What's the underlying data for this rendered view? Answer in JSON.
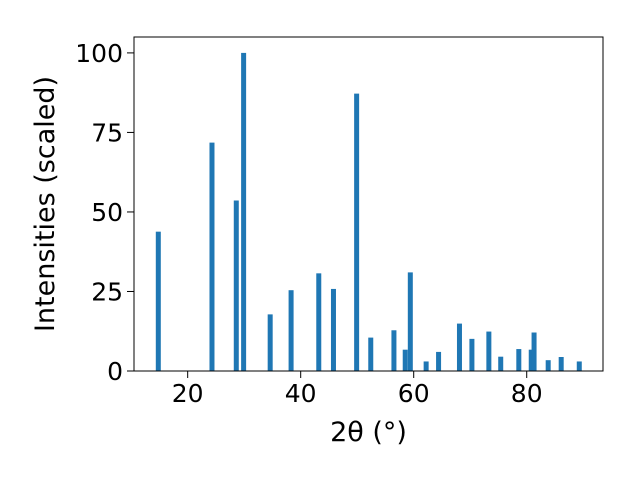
{
  "chart_data": {
    "type": "bar",
    "title": "",
    "xlabel": "2θ (°)",
    "ylabel": "Intensities (scaled)",
    "xlim": [
      10.5,
      93.5
    ],
    "ylim": [
      0,
      105
    ],
    "xticks": [
      20,
      40,
      60,
      80
    ],
    "yticks": [
      0,
      25,
      50,
      75,
      100
    ],
    "x_tick_labels": [
      "20",
      "40",
      "60",
      "80"
    ],
    "y_tick_labels": [
      "0",
      "25",
      "50",
      "75",
      "100"
    ],
    "grid": false,
    "color": "#1f77b4",
    "x": [
      14.8,
      24.3,
      28.6,
      29.9,
      34.6,
      38.3,
      43.2,
      45.8,
      49.9,
      52.4,
      56.5,
      58.5,
      59.4,
      62.2,
      64.4,
      68.1,
      70.3,
      73.3,
      75.4,
      78.6,
      80.8,
      81.3,
      83.8,
      86.1,
      89.3
    ],
    "values": [
      43.8,
      71.8,
      53.6,
      100.0,
      17.8,
      25.4,
      30.7,
      25.8,
      87.2,
      10.5,
      12.8,
      6.7,
      31.0,
      3.0,
      6.0,
      14.9,
      10.1,
      12.4,
      4.5,
      6.9,
      6.7,
      12.1,
      3.4,
      4.4,
      3.0
    ]
  }
}
